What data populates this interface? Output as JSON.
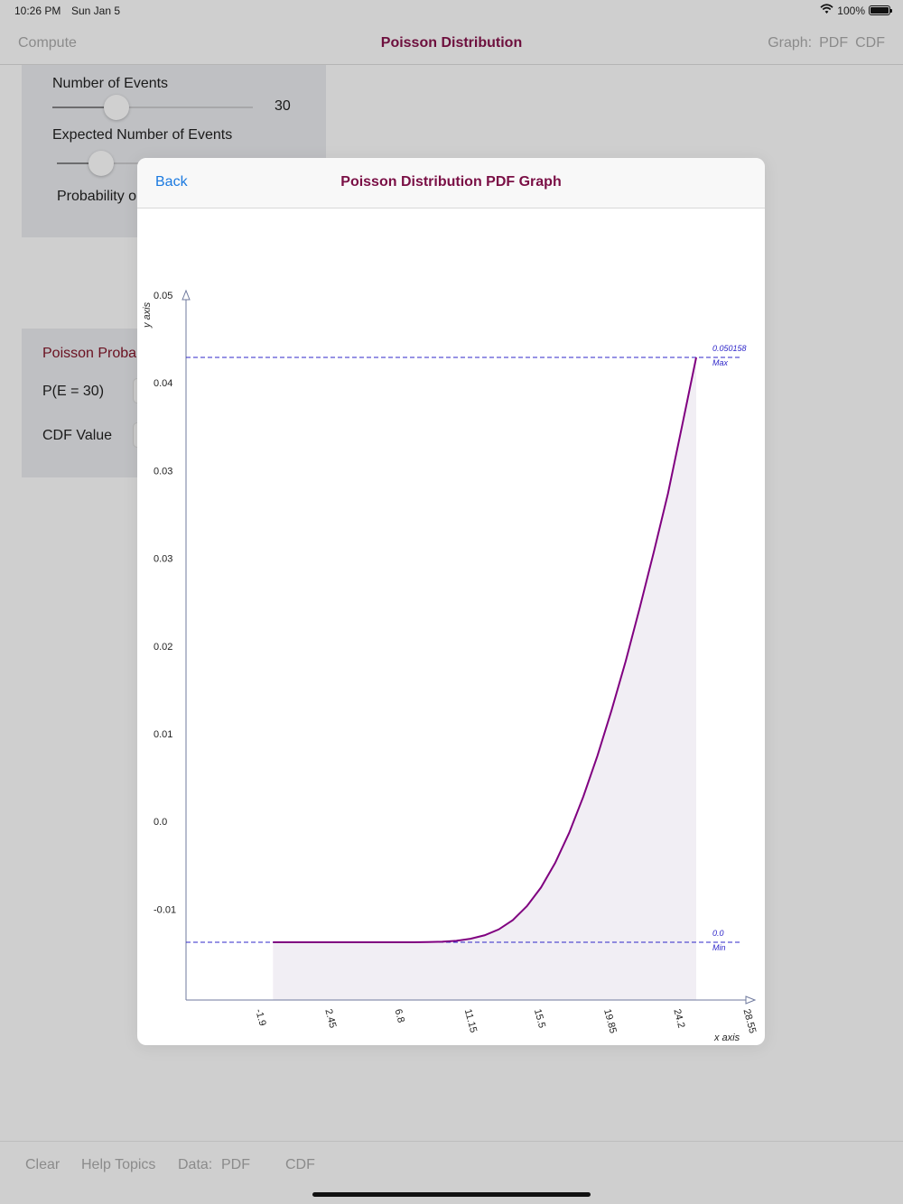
{
  "status_bar": {
    "time": "10:26 PM",
    "date": "Sun Jan 5",
    "battery": "100%"
  },
  "nav": {
    "left": "Compute",
    "title": "Poisson Distribution",
    "graph_label": "Graph:",
    "pdf": "PDF",
    "cdf": "CDF"
  },
  "inputs": {
    "events_label": "Number of Events",
    "events_value": "30",
    "events_slider_fraction": 0.32,
    "expected_label": "Expected Number of Events",
    "expected_slider_fraction": 0.22,
    "probability_label": "Probability o"
  },
  "results": {
    "title": "Poisson Proba",
    "pe_label": "P(E = 30)",
    "cdf_label": "CDF Value"
  },
  "toolbar": {
    "clear": "Clear",
    "help": "Help Topics",
    "data_label": "Data:",
    "pdf": "PDF",
    "cdf": "CDF"
  },
  "modal": {
    "back": "Back",
    "title": "Poisson Distribution PDF Graph"
  },
  "colors": {
    "accent": "#7a0f45",
    "curve": "#800080",
    "fill": "#f1eef4",
    "guide": "#2f27c9",
    "link": "#1b7ae0"
  },
  "chart_data": {
    "type": "area",
    "title": "Poisson Distribution PDF Graph",
    "xlabel": "x axis",
    "ylabel": "y axis",
    "x_ticks": [
      "-1.9",
      "2.45",
      "6.8",
      "11.15",
      "15.5",
      "19.85",
      "24.2",
      "28.55"
    ],
    "y_ticks": [
      "0.05",
      "0.04",
      "0.03",
      "0.03",
      "0.02",
      "0.01",
      "0.0",
      "-0.01"
    ],
    "max_label": "0.050158",
    "max_tag": "Max",
    "min_label": "0.0",
    "min_tag": "Min",
    "x": [
      0,
      1,
      2,
      3,
      4,
      5,
      6,
      7,
      8,
      9,
      10,
      11,
      12,
      13,
      14,
      15,
      16,
      17,
      18,
      19,
      20,
      21,
      22,
      23,
      24,
      25,
      26,
      27,
      28,
      29,
      30
    ],
    "y": [
      0,
      0,
      0,
      0,
      0,
      0,
      0,
      0,
      0,
      0,
      0,
      2e-05,
      5e-05,
      0.00013,
      0.0003,
      0.0006,
      0.0011,
      0.0019,
      0.0031,
      0.0047,
      0.0068,
      0.0094,
      0.0125,
      0.016,
      0.0199,
      0.0241,
      0.0287,
      0.0335,
      0.0385,
      0.0443,
      0.050158
    ],
    "xlim": [
      -2.9,
      30.0
    ],
    "ylim": [
      0,
      0.050158
    ]
  }
}
